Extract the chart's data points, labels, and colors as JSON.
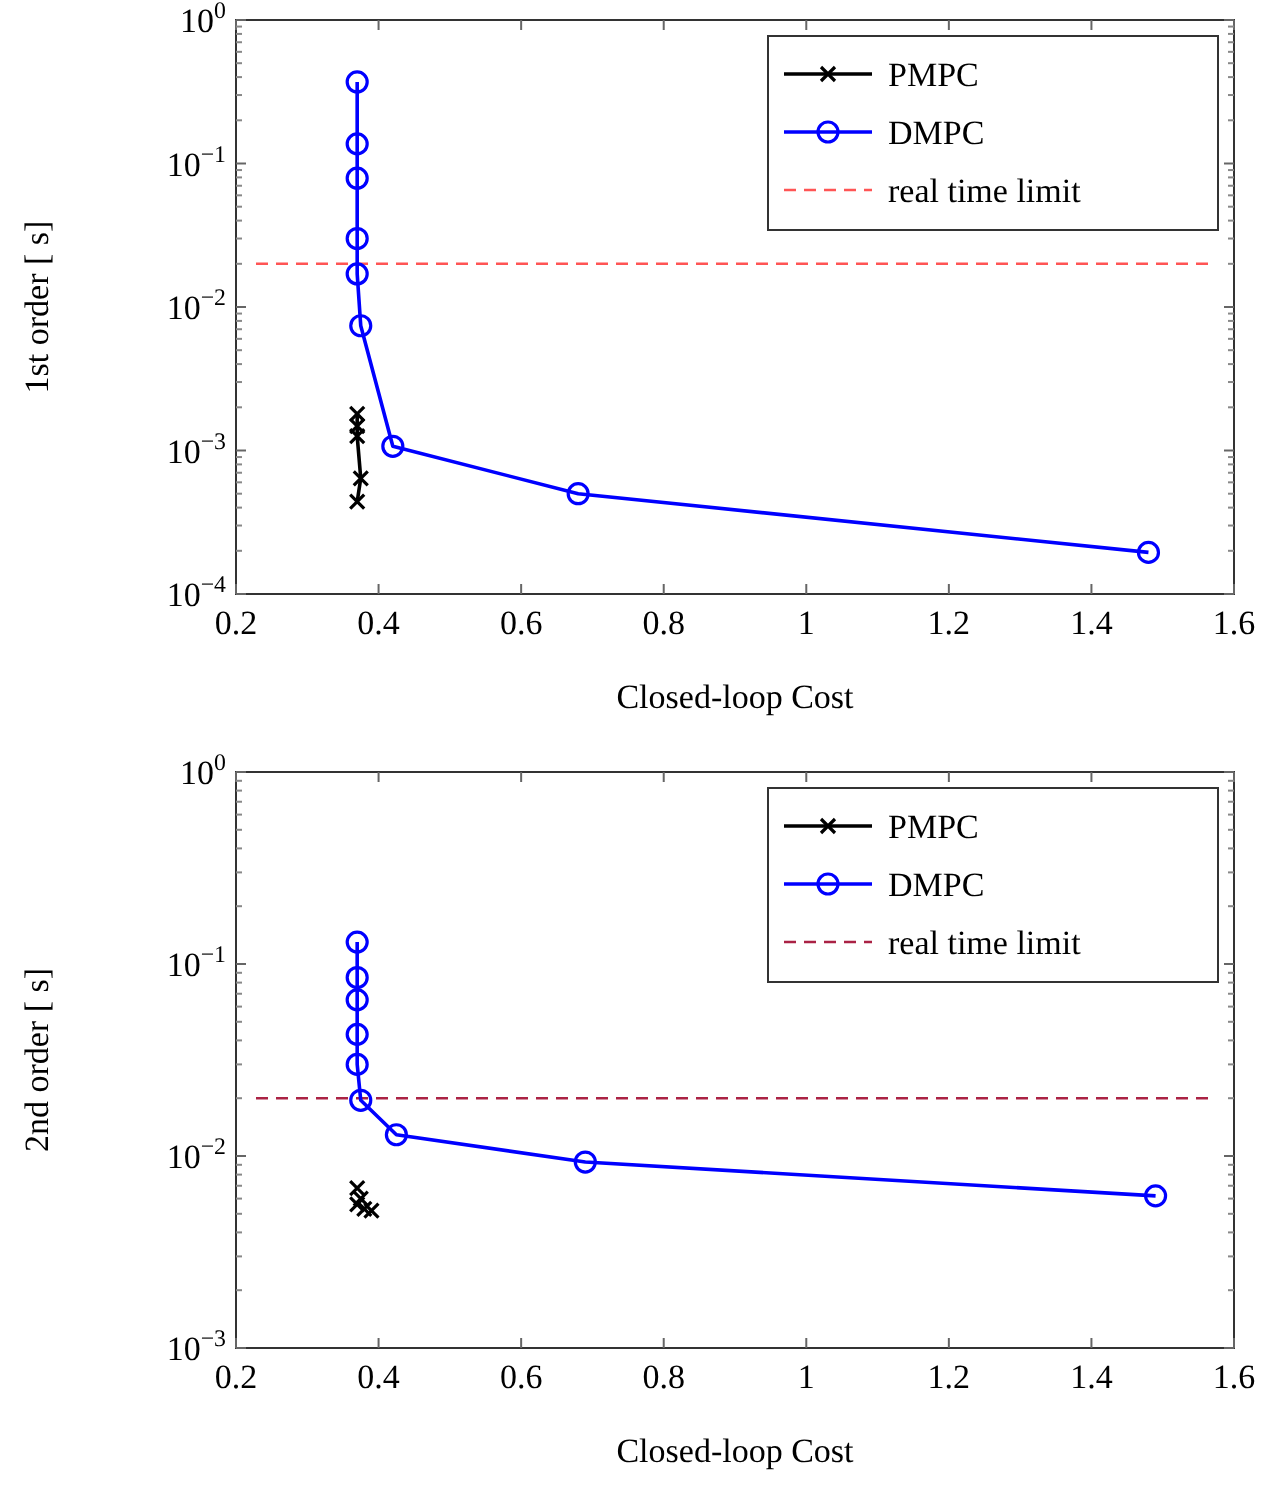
{
  "chart_data": [
    {
      "type": "line",
      "xlabel": "Closed-loop Cost",
      "ylabel": "1st order [ s]",
      "log": "y",
      "grid": false,
      "legend": "top right",
      "xlim": [
        0.2,
        1.6
      ],
      "xticks": [
        {
          "value": 0.2,
          "label": "0.2"
        },
        {
          "value": 0.4,
          "label": "0.4"
        },
        {
          "value": 0.6,
          "label": "0.6"
        },
        {
          "value": 0.8,
          "label": "0.8"
        },
        1,
        {
          "value": 1.2,
          "label": "1.2"
        },
        {
          "value": 1.4,
          "label": "1.4"
        },
        {
          "value": 1.6,
          "label": "1.6"
        }
      ],
      "ylim": [
        0.0001,
        1
      ],
      "yticks": [
        {
          "value": 0.0001,
          "label": "10$^{−4}$"
        },
        {
          "value": 0.001,
          "label": "10$^{−3}$"
        },
        {
          "value": 0.01,
          "label": "10$^{−2}$"
        },
        {
          "value": 0.1,
          "label": "10$^{−1}$"
        },
        {
          "value": 1,
          "label": "10$^{0}$"
        }
      ],
      "series": [
        {
          "name": "PMPC",
          "color": "#000000",
          "marker": "cross",
          "x": [
            0.37,
            0.37,
            0.37,
            0.375,
            0.37
          ],
          "values": [
            0.0018,
            0.00148,
            0.00126,
            0.00064,
            0.00044
          ]
        },
        {
          "name": "DMPC",
          "color": "#0000ff",
          "marker": "circle",
          "x": [
            0.37,
            0.37,
            0.37,
            0.37,
            0.37,
            0.375,
            0.42,
            0.68,
            1.48
          ],
          "values": [
            0.37,
            0.137,
            0.079,
            0.03,
            0.017,
            0.0074,
            0.00107,
            0.0005,
            0.000195
          ]
        }
      ],
      "ref_lines": [
        {
          "axis": "y",
          "value": 0.02,
          "label": "real time limit",
          "color": "#ff5555",
          "line_style": "dashed"
        }
      ]
    },
    {
      "type": "line",
      "xlabel": "Closed-loop Cost",
      "ylabel": "2nd order [ s]",
      "log": "y",
      "grid": false,
      "legend": "top right",
      "xlim": [
        0.2,
        1.6
      ],
      "xticks": [
        {
          "value": 0.2,
          "label": "0.2"
        },
        {
          "value": 0.4,
          "label": "0.4"
        },
        {
          "value": 0.6,
          "label": "0.6"
        },
        {
          "value": 0.8,
          "label": "0.8"
        },
        1,
        {
          "value": 1.2,
          "label": "1.2"
        },
        {
          "value": 1.4,
          "label": "1.4"
        },
        {
          "value": 1.6,
          "label": "1.6"
        }
      ],
      "ylim": [
        0.001,
        1
      ],
      "yticks": [
        {
          "value": 0.001,
          "label": "10$^{−3}$"
        },
        {
          "value": 0.01,
          "label": "10$^{−2}$"
        },
        {
          "value": 0.1,
          "label": "10$^{−1}$"
        },
        {
          "value": 1,
          "label": "10$^{0}$"
        }
      ],
      "series": [
        {
          "name": "PMPC",
          "type": "scatter",
          "color": "#000000",
          "marker": "cross",
          "x": [
            0.37,
            0.375,
            0.37,
            0.38,
            0.39
          ],
          "values": [
            0.0068,
            0.006,
            0.0056,
            0.0053,
            0.0052
          ]
        },
        {
          "name": "DMPC",
          "color": "#0000ff",
          "marker": "circle",
          "x": [
            0.37,
            0.37,
            0.37,
            0.37,
            0.37,
            0.375,
            0.425,
            0.69,
            1.49
          ],
          "values": [
            0.13,
            0.085,
            0.065,
            0.043,
            0.03,
            0.0195,
            0.0129,
            0.0093,
            0.0062
          ]
        }
      ],
      "ref_lines": [
        {
          "axis": "y",
          "value": 0.02,
          "label": "real time limit",
          "color": "#aa2244",
          "line_style": "dashed"
        }
      ]
    }
  ]
}
